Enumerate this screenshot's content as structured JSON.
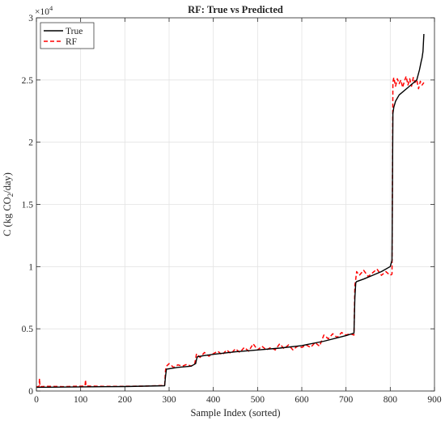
{
  "chart_data": {
    "type": "line",
    "title": "RF: True vs Predicted",
    "xlabel": "Sample Index (sorted)",
    "ylabel_parts": [
      "C (kg CO",
      "2",
      "/day)"
    ],
    "y_exponent_label": "×10",
    "y_exponent_power": "4",
    "xlim": [
      0,
      900
    ],
    "ylim": [
      0,
      30000
    ],
    "xticks": [
      0,
      100,
      200,
      300,
      400,
      500,
      600,
      700,
      800,
      900
    ],
    "yticks": [
      0,
      5000,
      10000,
      15000,
      20000,
      25000,
      30000
    ],
    "ytick_labels": [
      "0",
      "0.5",
      "1",
      "1.5",
      "2",
      "2.5",
      "3"
    ],
    "grid": true,
    "legend_position": "top-left",
    "series": [
      {
        "name": "True",
        "color": "#000000",
        "style": "solid",
        "x": [
          0,
          100,
          200,
          290,
          292,
          294,
          320,
          350,
          360,
          362,
          364,
          380,
          400,
          450,
          500,
          550,
          600,
          650,
          700,
          718,
          720,
          722,
          724,
          740,
          760,
          780,
          800,
          804,
          806,
          808,
          812,
          820,
          840,
          860,
          866,
          870,
          872,
          874,
          876
        ],
        "y": [
          300,
          330,
          360,
          420,
          1200,
          1750,
          1900,
          2000,
          2200,
          2550,
          2750,
          2850,
          2950,
          3150,
          3300,
          3450,
          3650,
          4000,
          4450,
          4650,
          7500,
          8700,
          8800,
          9000,
          9300,
          9600,
          10000,
          10500,
          22300,
          22800,
          23300,
          23800,
          24400,
          25000,
          25800,
          26500,
          26800,
          27300,
          28700
        ]
      },
      {
        "name": "RF",
        "color": "#ff0000",
        "style": "dashed",
        "x": [
          0,
          6,
          7,
          8,
          30,
          60,
          110,
          111,
          112,
          150,
          200,
          250,
          290,
          292,
          294,
          300,
          310,
          320,
          330,
          340,
          350,
          358,
          360,
          362,
          370,
          380,
          390,
          400,
          410,
          420,
          430,
          440,
          450,
          460,
          470,
          480,
          490,
          500,
          510,
          520,
          530,
          540,
          550,
          560,
          570,
          580,
          590,
          600,
          610,
          620,
          630,
          640,
          650,
          660,
          670,
          680,
          690,
          700,
          710,
          718,
          720,
          722,
          724,
          730,
          740,
          750,
          760,
          770,
          780,
          790,
          800,
          804,
          806,
          808,
          812,
          816,
          820,
          824,
          828,
          832,
          836,
          840,
          844,
          848,
          852,
          856,
          860,
          864,
          868,
          872,
          876
        ],
        "y": [
          350,
          350,
          1000,
          350,
          380,
          350,
          400,
          900,
          400,
          380,
          380,
          400,
          450,
          1700,
          2000,
          2200,
          1900,
          2100,
          2000,
          2150,
          2000,
          2200,
          2600,
          3000,
          2700,
          3100,
          2800,
          3000,
          3200,
          2900,
          3300,
          3000,
          3400,
          3100,
          3500,
          3200,
          3800,
          3300,
          3600,
          3300,
          3500,
          3300,
          3800,
          3400,
          3700,
          3300,
          3600,
          3500,
          3700,
          3500,
          3900,
          3600,
          4500,
          4200,
          4600,
          4300,
          4700,
          4500,
          4600,
          4500,
          8500,
          9000,
          9600,
          9300,
          9700,
          9200,
          9500,
          9800,
          9300,
          9600,
          9300,
          9400,
          24800,
          25200,
          24500,
          25100,
          24700,
          25000,
          24400,
          24900,
          25300,
          24600,
          25100,
          24500,
          25200,
          24800,
          25000,
          24300,
          24900,
          24600,
          24800
        ]
      }
    ]
  }
}
